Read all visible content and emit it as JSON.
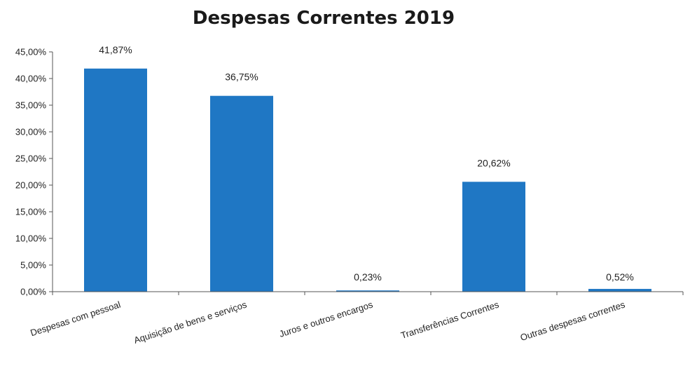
{
  "chart_data": {
    "type": "bar",
    "title": "Despesas Correntes 2019",
    "xlabel": "",
    "ylabel": "",
    "categories": [
      "Despesas com pessoal",
      "Aquisição de bens e serviços",
      "Juros e outros encargos",
      "Transferências Correntes",
      "Outras despesas correntes"
    ],
    "values": [
      41.87,
      36.75,
      0.23,
      20.62,
      0.52
    ],
    "data_labels": [
      "41,87%",
      "36,75%",
      "0,23%",
      "20,62%",
      "0,52%"
    ],
    "ylim": [
      0,
      45
    ],
    "yticks": [
      0,
      5,
      10,
      15,
      20,
      25,
      30,
      35,
      40,
      45
    ],
    "ytick_labels": [
      "0,00%",
      "5,00%",
      "10,00%",
      "15,00%",
      "20,00%",
      "25,00%",
      "30,00%",
      "35,00%",
      "40,00%",
      "45,00%"
    ],
    "grid": false,
    "legend": "none",
    "bar_color": "#1f77c4",
    "axis_color": "#555555"
  }
}
